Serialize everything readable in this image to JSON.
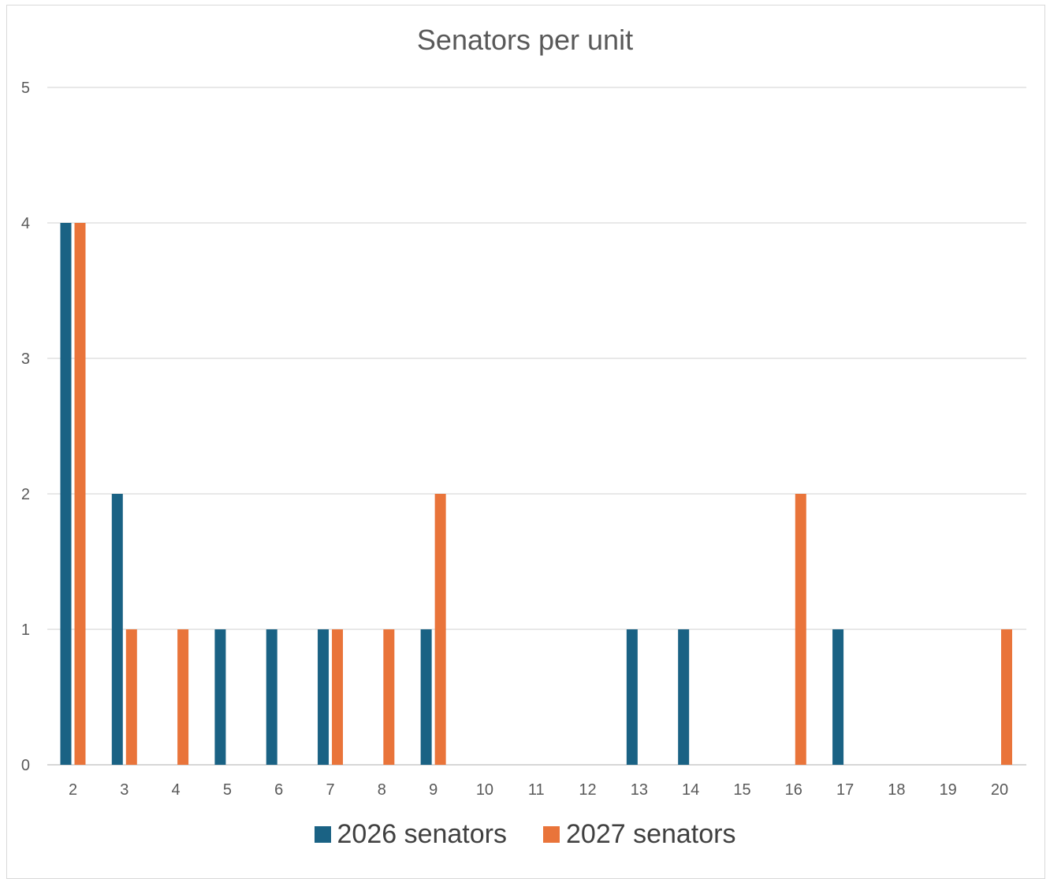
{
  "chart_data": {
    "type": "bar",
    "title": "Senators per unit",
    "xlabel": "",
    "ylabel": "",
    "ylim": [
      0,
      5
    ],
    "yticks": [
      0,
      1,
      2,
      3,
      4,
      5
    ],
    "grid": true,
    "legend_position": "bottom",
    "categories": [
      "2",
      "3",
      "4",
      "5",
      "6",
      "7",
      "8",
      "9",
      "10",
      "11",
      "12",
      "13",
      "14",
      "15",
      "16",
      "17",
      "18",
      "19",
      "20"
    ],
    "series": [
      {
        "name": "2026 senators",
        "color": "#1a6284",
        "values": [
          4,
          2,
          0,
          1,
          1,
          1,
          0,
          1,
          0,
          0,
          0,
          1,
          1,
          0,
          0,
          1,
          0,
          0,
          0
        ]
      },
      {
        "name": "2027 senators",
        "color": "#e9743a",
        "values": [
          4,
          1,
          1,
          0,
          0,
          1,
          1,
          2,
          0,
          0,
          0,
          0,
          0,
          0,
          2,
          0,
          0,
          0,
          1
        ]
      }
    ]
  }
}
